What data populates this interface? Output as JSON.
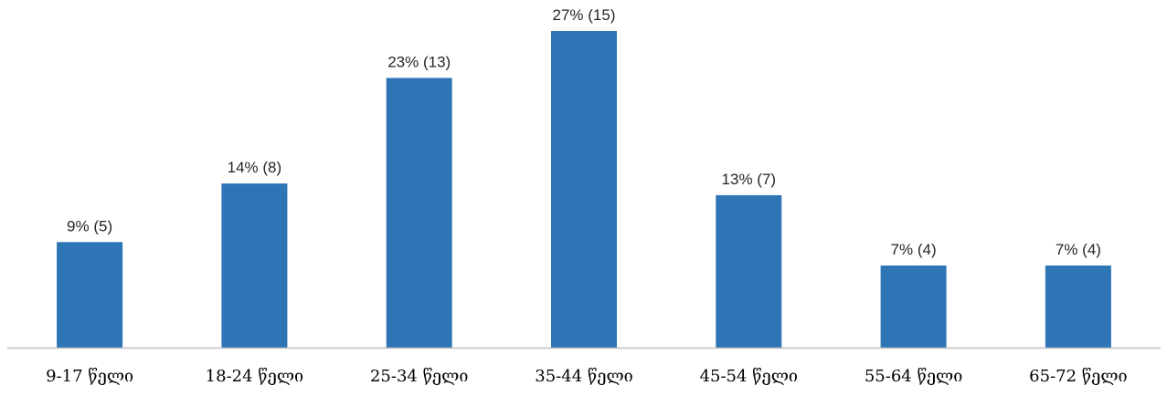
{
  "chart_data": {
    "type": "bar",
    "title": "",
    "xlabel": "",
    "ylabel": "",
    "categories": [
      "9-17 წელი",
      "18-24 წელი",
      "25-34 წელი",
      "35-44 წელი",
      "45-54 წელი",
      "55-64 წელი",
      "65-72 წელი"
    ],
    "values": [
      9,
      14,
      23,
      27,
      13,
      7,
      7
    ],
    "counts": [
      5,
      8,
      13,
      15,
      7,
      4,
      4
    ],
    "data_labels": [
      "9% (5)",
      "14% (8)",
      "23% (13)",
      "27% (15)",
      "13% (7)",
      "7% (4)",
      "7% (4)"
    ],
    "ylim": [
      0,
      27
    ],
    "grid": false,
    "legend": "none",
    "colors": {
      "bar": "#2E75B6",
      "axis": "#BFBFBF"
    }
  }
}
